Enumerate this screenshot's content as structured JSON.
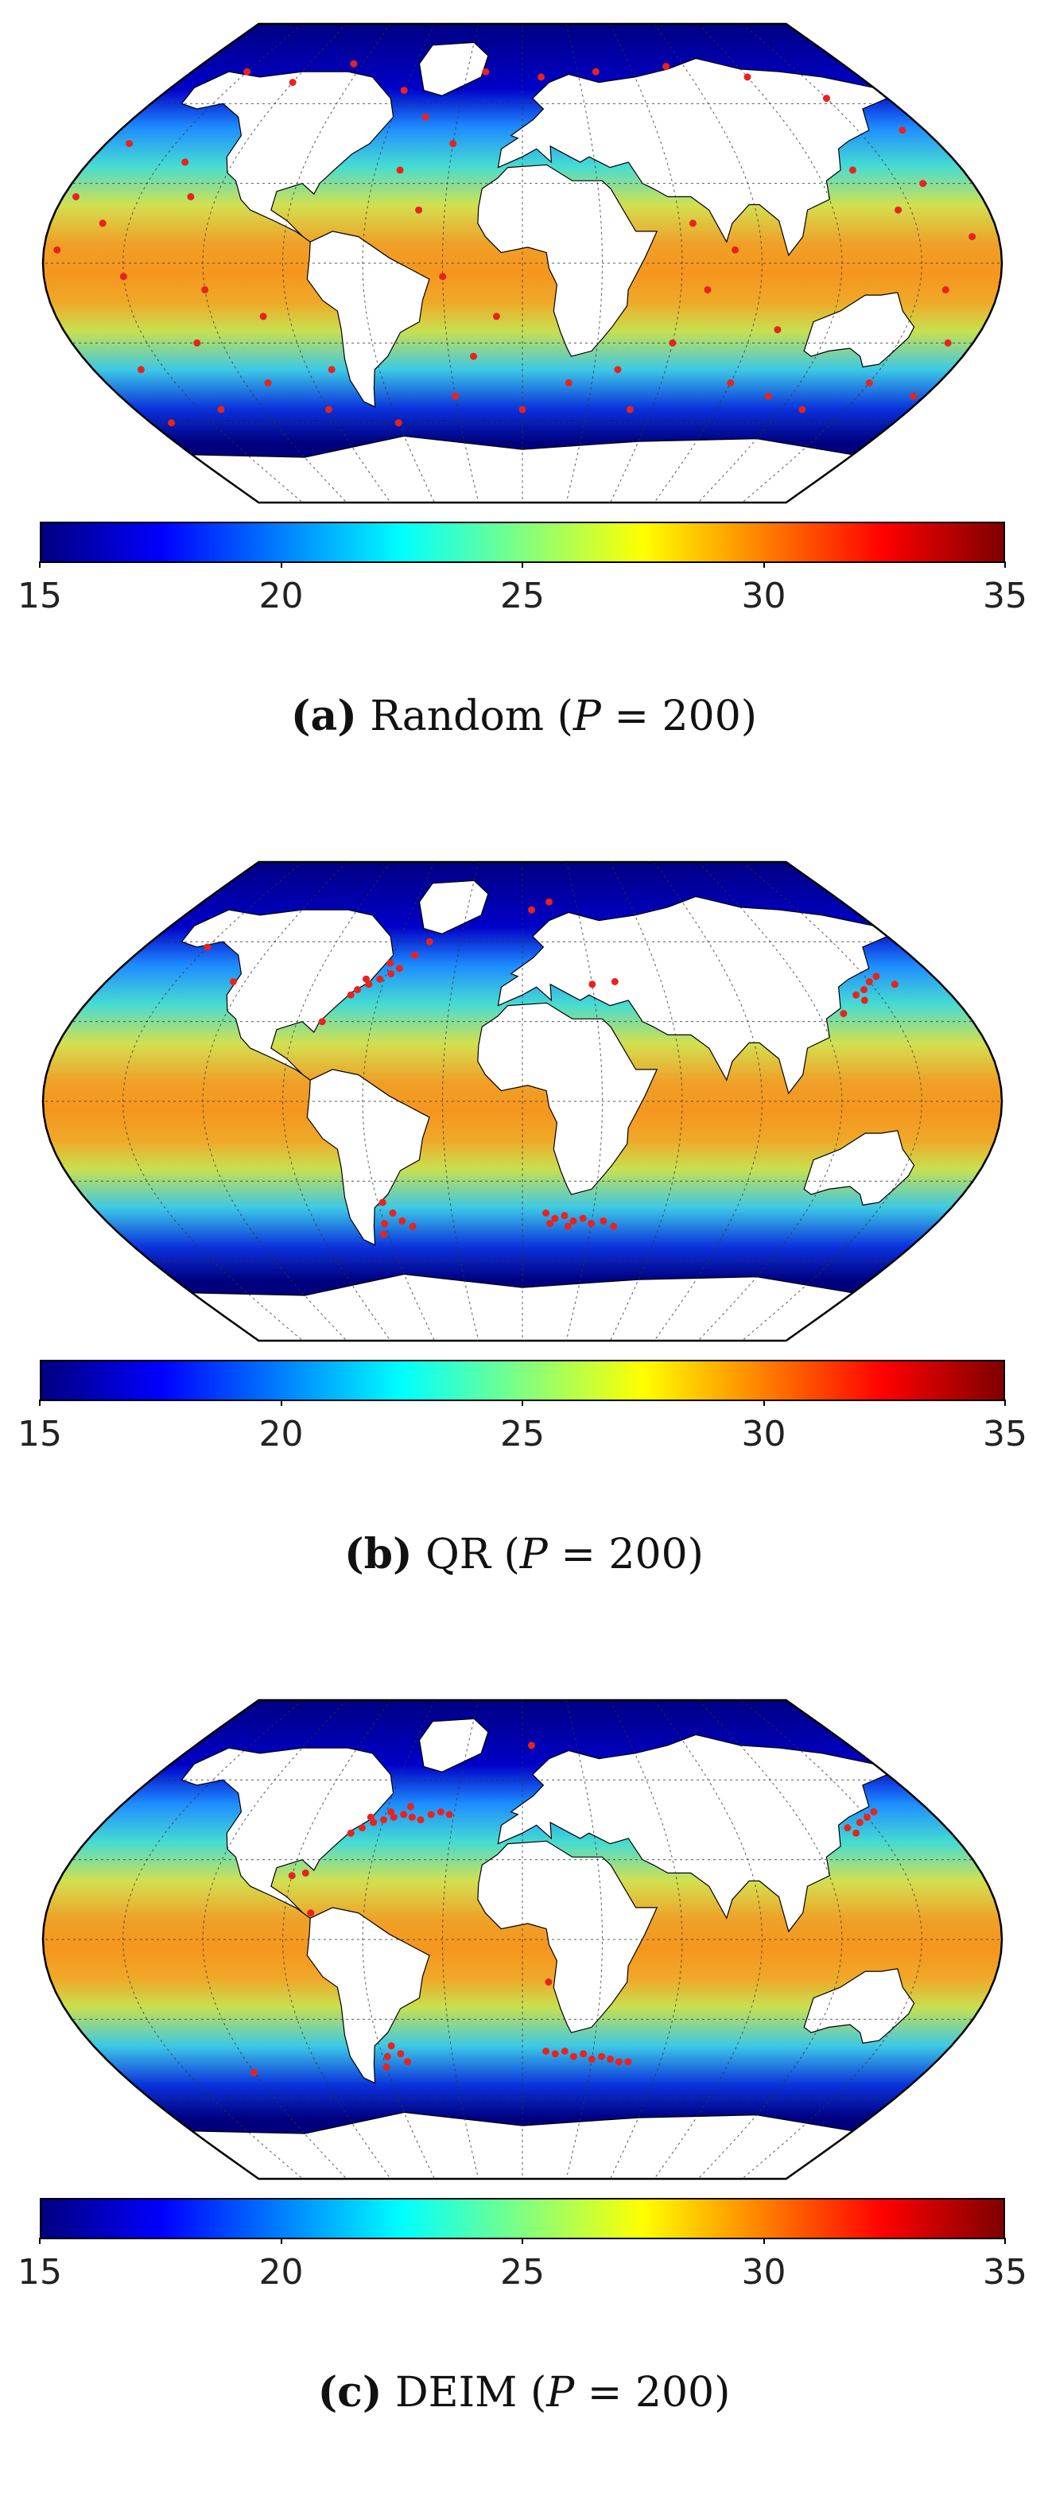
{
  "chart_data": [
    {
      "type": "heatmap",
      "subtitle_label": "(a)",
      "subtitle_method": "Random",
      "subtitle_param": "P",
      "subtitle_value": "= 200)",
      "colorbar": {
        "min": 15,
        "max": 35,
        "ticks": [
          "15",
          "20",
          "25",
          "30",
          "35"
        ],
        "colormap": "jet"
      },
      "sensor_color": "#e8231e",
      "sensors": [
        {
          "lon": -150,
          "lat": 72
        },
        {
          "lon": -120,
          "lat": 68
        },
        {
          "lon": -95,
          "lat": 75
        },
        {
          "lon": -60,
          "lat": 65
        },
        {
          "lon": -20,
          "lat": 72
        },
        {
          "lon": 10,
          "lat": 70
        },
        {
          "lon": 40,
          "lat": 72
        },
        {
          "lon": 80,
          "lat": 74
        },
        {
          "lon": 120,
          "lat": 70
        },
        {
          "lon": 150,
          "lat": 62
        },
        {
          "lon": 170,
          "lat": 50
        },
        {
          "lon": -170,
          "lat": 45
        },
        {
          "lon": -140,
          "lat": 38
        },
        {
          "lon": -130,
          "lat": 25
        },
        {
          "lon": -160,
          "lat": 15
        },
        {
          "lon": -175,
          "lat": 5
        },
        {
          "lon": -150,
          "lat": -5
        },
        {
          "lon": -120,
          "lat": -10
        },
        {
          "lon": -100,
          "lat": -20
        },
        {
          "lon": -130,
          "lat": -30
        },
        {
          "lon": -160,
          "lat": -40
        },
        {
          "lon": -110,
          "lat": -45
        },
        {
          "lon": -90,
          "lat": -55
        },
        {
          "lon": -60,
          "lat": -60
        },
        {
          "lon": -30,
          "lat": -50
        },
        {
          "lon": -20,
          "lat": -35
        },
        {
          "lon": -10,
          "lat": -20
        },
        {
          "lon": -30,
          "lat": -5
        },
        {
          "lon": -40,
          "lat": 20
        },
        {
          "lon": -50,
          "lat": 35
        },
        {
          "lon": -30,
          "lat": 45
        },
        {
          "lon": -45,
          "lat": 55
        },
        {
          "lon": 0,
          "lat": -55
        },
        {
          "lon": 20,
          "lat": -45
        },
        {
          "lon": 40,
          "lat": -40
        },
        {
          "lon": 60,
          "lat": -30
        },
        {
          "lon": 70,
          "lat": -10
        },
        {
          "lon": 80,
          "lat": 5
        },
        {
          "lon": 65,
          "lat": 15
        },
        {
          "lon": 90,
          "lat": -45
        },
        {
          "lon": 110,
          "lat": -50
        },
        {
          "lon": 130,
          "lat": -55
        },
        {
          "lon": 150,
          "lat": -45
        },
        {
          "lon": 170,
          "lat": -30
        },
        {
          "lon": 160,
          "lat": -10
        },
        {
          "lon": 170,
          "lat": 10
        },
        {
          "lon": 145,
          "lat": 20
        },
        {
          "lon": 135,
          "lat": 35
        },
        {
          "lon": 160,
          "lat": 30
        },
        {
          "lon": -170,
          "lat": -60
        },
        {
          "lon": 175,
          "lat": -50
        },
        {
          "lon": 100,
          "lat": -25
        },
        {
          "lon": 50,
          "lat": -55
        },
        {
          "lon": -80,
          "lat": -40
        },
        {
          "lon": -140,
          "lat": -55
        },
        {
          "lon": -175,
          "lat": 25
        }
      ]
    },
    {
      "type": "heatmap",
      "subtitle_label": "(b)",
      "subtitle_method": "QR",
      "subtitle_param": "P",
      "subtitle_value": "= 200)",
      "colorbar": {
        "min": 15,
        "max": 35,
        "ticks": [
          "15",
          "20",
          "25",
          "30",
          "35"
        ],
        "colormap": "jet"
      },
      "sensor_color": "#e8231e",
      "sensors": [
        {
          "lon": -70,
          "lat": 42
        },
        {
          "lon": -66,
          "lat": 44
        },
        {
          "lon": -62,
          "lat": 46
        },
        {
          "lon": -58,
          "lat": 48
        },
        {
          "lon": -72,
          "lat": 40
        },
        {
          "lon": -55,
          "lat": 50
        },
        {
          "lon": -60,
          "lat": 52
        },
        {
          "lon": -68,
          "lat": 46
        },
        {
          "lon": -50,
          "lat": 55
        },
        {
          "lon": -45,
          "lat": 60
        },
        {
          "lon": -80,
          "lat": 30
        },
        {
          "lon": -125,
          "lat": 45
        },
        {
          "lon": -150,
          "lat": 58
        },
        {
          "lon": 5,
          "lat": 72
        },
        {
          "lon": 15,
          "lat": 75
        },
        {
          "lon": 30,
          "lat": 44
        },
        {
          "lon": 40,
          "lat": 45
        },
        {
          "lon": 140,
          "lat": 40
        },
        {
          "lon": 145,
          "lat": 42
        },
        {
          "lon": 150,
          "lat": 45
        },
        {
          "lon": 142,
          "lat": 38
        },
        {
          "lon": 155,
          "lat": 47
        },
        {
          "lon": 160,
          "lat": 44
        },
        {
          "lon": 130,
          "lat": 33
        },
        {
          "lon": -58,
          "lat": -38
        },
        {
          "lon": -55,
          "lat": -42
        },
        {
          "lon": -52,
          "lat": -45
        },
        {
          "lon": -60,
          "lat": -46
        },
        {
          "lon": -48,
          "lat": -47
        },
        {
          "lon": -62,
          "lat": -50
        },
        {
          "lon": 10,
          "lat": -42
        },
        {
          "lon": 14,
          "lat": -44
        },
        {
          "lon": 18,
          "lat": -43
        },
        {
          "lon": 22,
          "lat": -45
        },
        {
          "lon": 26,
          "lat": -44
        },
        {
          "lon": 30,
          "lat": -46
        },
        {
          "lon": 35,
          "lat": -45
        },
        {
          "lon": 40,
          "lat": -47
        },
        {
          "lon": 12,
          "lat": -46
        },
        {
          "lon": 20,
          "lat": -47
        }
      ]
    },
    {
      "type": "heatmap",
      "subtitle_label": "(c)",
      "subtitle_method": "DEIM",
      "subtitle_param": "P",
      "subtitle_value": "= 200)",
      "colorbar": {
        "min": 15,
        "max": 35,
        "ticks": [
          "15",
          "20",
          "25",
          "30",
          "35"
        ],
        "colormap": "jet"
      },
      "sensor_color": "#e8231e",
      "sensors": [
        {
          "lon": -72,
          "lat": 40
        },
        {
          "lon": -68,
          "lat": 42
        },
        {
          "lon": -64,
          "lat": 44
        },
        {
          "lon": -60,
          "lat": 45
        },
        {
          "lon": -56,
          "lat": 46
        },
        {
          "lon": -52,
          "lat": 47
        },
        {
          "lon": -48,
          "lat": 46
        },
        {
          "lon": -44,
          "lat": 45
        },
        {
          "lon": -40,
          "lat": 47
        },
        {
          "lon": -36,
          "lat": 48
        },
        {
          "lon": -32,
          "lat": 47
        },
        {
          "lon": -66,
          "lat": 46
        },
        {
          "lon": -58,
          "lat": 48
        },
        {
          "lon": -50,
          "lat": 50
        },
        {
          "lon": -85,
          "lat": 25
        },
        {
          "lon": -90,
          "lat": 24
        },
        {
          "lon": -80,
          "lat": 10
        },
        {
          "lon": 5,
          "lat": 73
        },
        {
          "lon": 140,
          "lat": 40
        },
        {
          "lon": 145,
          "lat": 44
        },
        {
          "lon": 150,
          "lat": 46
        },
        {
          "lon": 138,
          "lat": 42
        },
        {
          "lon": 155,
          "lat": 48
        },
        {
          "lon": 10,
          "lat": -16
        },
        {
          "lon": -55,
          "lat": -40
        },
        {
          "lon": -52,
          "lat": -43
        },
        {
          "lon": -58,
          "lat": -44
        },
        {
          "lon": -50,
          "lat": -46
        },
        {
          "lon": -60,
          "lat": -48
        },
        {
          "lon": -120,
          "lat": -50
        },
        {
          "lon": 10,
          "lat": -42
        },
        {
          "lon": 14,
          "lat": -43
        },
        {
          "lon": 18,
          "lat": -42
        },
        {
          "lon": 22,
          "lat": -44
        },
        {
          "lon": 26,
          "lat": -43
        },
        {
          "lon": 30,
          "lat": -45
        },
        {
          "lon": 34,
          "lat": -44
        },
        {
          "lon": 38,
          "lat": -45
        },
        {
          "lon": 42,
          "lat": -46
        },
        {
          "lon": 46,
          "lat": -46
        }
      ]
    }
  ]
}
